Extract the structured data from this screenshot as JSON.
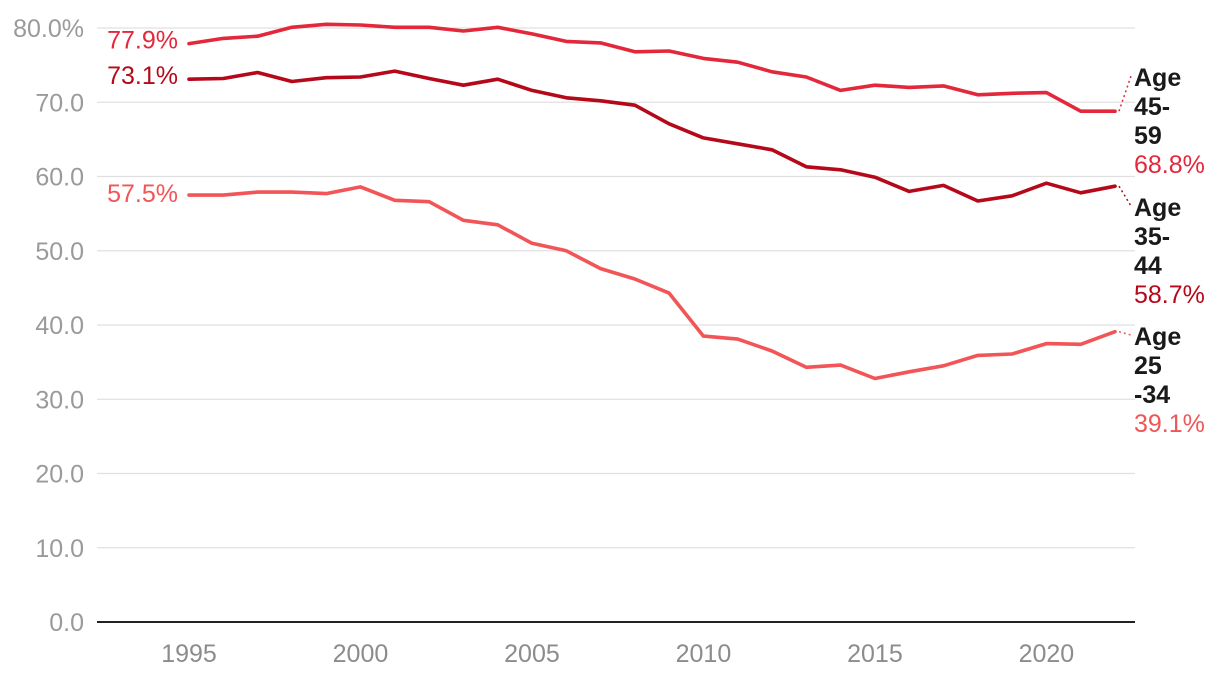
{
  "chart_data": {
    "type": "line",
    "title": "",
    "xlabel": "",
    "ylabel": "",
    "xlim": [
      1992,
      2023
    ],
    "ylim": [
      0,
      80
    ],
    "grid": true,
    "yticks": [
      "0.0",
      "10.0",
      "20.0",
      "30.0",
      "40.0",
      "50.0",
      "60.0",
      "70.0",
      "80.0%"
    ],
    "yticks_values": [
      0,
      10,
      20,
      30,
      40,
      50,
      60,
      70,
      80
    ],
    "xticks": [
      "1995",
      "2000",
      "2005",
      "2010",
      "2015",
      "2020"
    ],
    "xticks_values": [
      1995,
      2000,
      2005,
      2010,
      2015,
      2020
    ],
    "x": [
      1995,
      1996,
      1997,
      1998,
      1999,
      2000,
      2001,
      2002,
      2003,
      2004,
      2005,
      2006,
      2007,
      2008,
      2009,
      2010,
      2011,
      2012,
      2013,
      2014,
      2015,
      2016,
      2017,
      2018,
      2019,
      2020,
      2021,
      2022
    ],
    "series": [
      {
        "name": "Age 45-59",
        "name_lines": [
          "Age",
          "45-",
          "59"
        ],
        "color": "#e3283c",
        "start_label": "77.9%",
        "end_label": "68.8%",
        "values": [
          77.9,
          78.6,
          78.9,
          80.1,
          80.5,
          80.4,
          80.1,
          80.1,
          79.6,
          80.1,
          79.2,
          78.2,
          78.0,
          76.8,
          76.9,
          75.9,
          75.4,
          74.1,
          73.4,
          71.6,
          72.3,
          72.0,
          72.2,
          71.0,
          71.2,
          71.3,
          68.8,
          68.8
        ]
      },
      {
        "name": "Age 35-44",
        "name_lines": [
          "Age",
          "35-",
          "44"
        ],
        "color": "#b5091a",
        "start_label": "73.1%",
        "end_label": "58.7%",
        "values": [
          73.1,
          73.2,
          74.0,
          72.8,
          73.3,
          73.4,
          74.2,
          73.2,
          72.3,
          73.1,
          71.6,
          70.6,
          70.2,
          69.6,
          67.1,
          65.2,
          64.4,
          63.6,
          61.3,
          60.9,
          59.9,
          58.0,
          58.8,
          56.7,
          57.4,
          59.1,
          57.8,
          58.7
        ]
      },
      {
        "name": "Age 25-34",
        "name_lines": [
          "Age",
          "25",
          "-34"
        ],
        "color": "#f25557",
        "start_label": "57.5%",
        "end_label": "39.1%",
        "values": [
          57.5,
          57.5,
          57.9,
          57.9,
          57.7,
          58.6,
          56.8,
          56.6,
          54.1,
          53.5,
          51.0,
          50.0,
          47.6,
          46.2,
          44.3,
          38.5,
          38.1,
          36.5,
          34.3,
          34.6,
          32.8,
          33.7,
          34.5,
          35.9,
          36.1,
          37.5,
          37.4,
          39.1
        ]
      }
    ]
  }
}
